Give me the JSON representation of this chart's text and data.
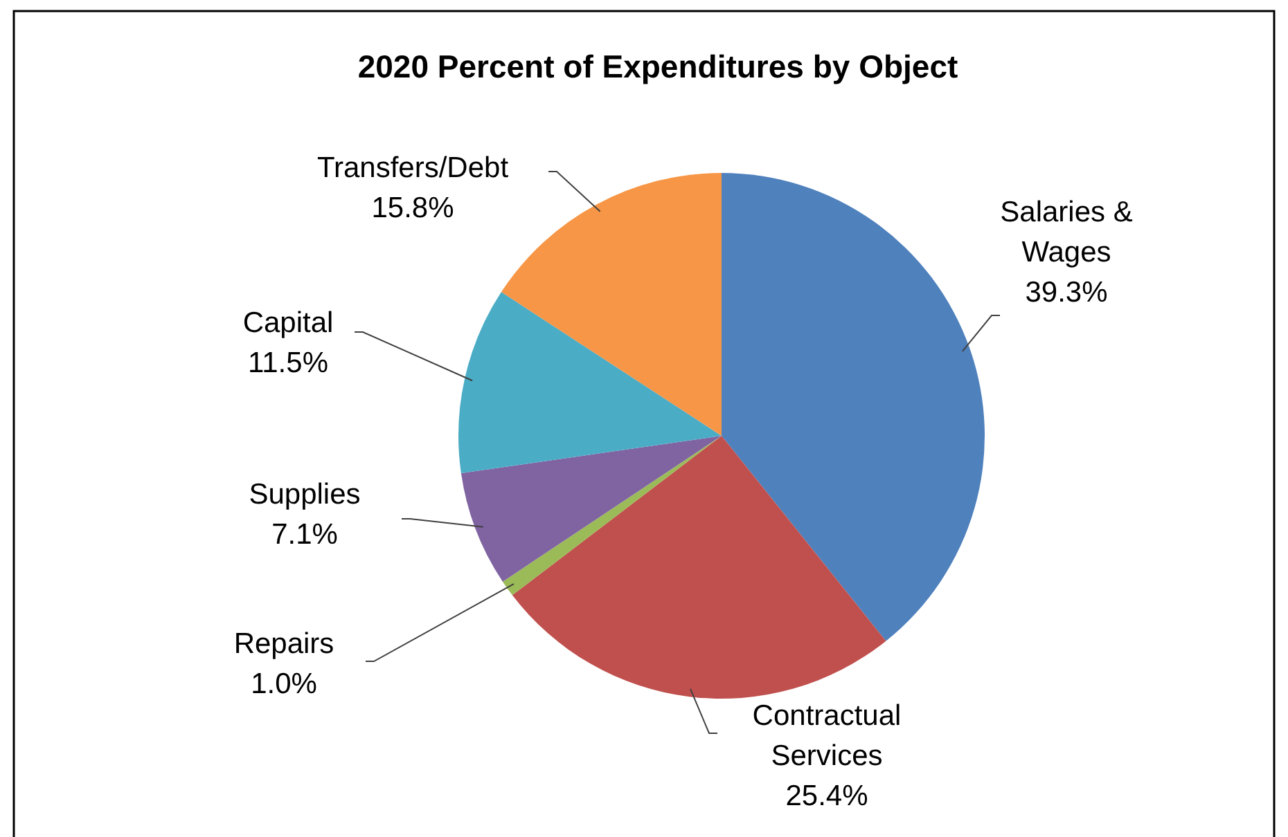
{
  "chart_data": {
    "type": "pie",
    "title": "2020 Percent of Expenditures by Object",
    "categories": [
      "Salaries & Wages",
      "Contractual Services",
      "Repairs",
      "Supplies",
      "Capital",
      "Transfers/Debt"
    ],
    "values": [
      39.3,
      25.4,
      1.0,
      7.1,
      11.5,
      15.8
    ],
    "value_labels": [
      "39.3%",
      "25.4%",
      "1.0%",
      "7.1%",
      "11.5%",
      "15.8%"
    ],
    "colors": [
      "#4f81bd",
      "#c0504d",
      "#9bbb59",
      "#8064a2",
      "#4bacc6",
      "#f79646"
    ]
  }
}
